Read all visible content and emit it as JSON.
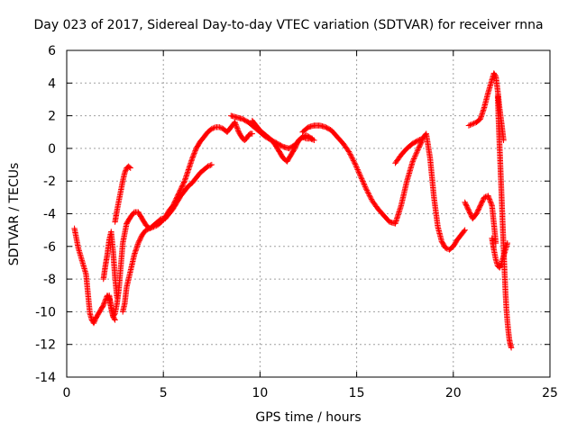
{
  "chart_data": {
    "type": "scatter",
    "title": "Day 023 of 2017, Sidereal Day-to-day VTEC variation (SDTVAR) for receiver rnna",
    "xlabel": "GPS time / hours",
    "ylabel": "SDTVAR / TECUs",
    "xlim": [
      0,
      25
    ],
    "ylim": [
      -14,
      6
    ],
    "x_ticks": [
      0,
      5,
      10,
      15,
      20,
      25
    ],
    "y_ticks": [
      -14,
      -12,
      -10,
      -8,
      -6,
      -4,
      -2,
      0,
      2,
      4,
      6
    ],
    "grid": true,
    "marker": "+",
    "color": "#ff0000",
    "series": [
      {
        "x": [
          0.4,
          0.6,
          1.0,
          1.05,
          1.1,
          1.15,
          1.2,
          1.3,
          1.4,
          1.5
        ],
        "y": [
          -4.9,
          -6.1,
          -7.7,
          -8.3,
          -8.9,
          -9.5,
          -10.1,
          -10.5,
          -10.7,
          -10.4
        ]
      },
      {
        "x": [
          1.5,
          1.7,
          1.9,
          2.0,
          2.1,
          2.2,
          2.3,
          2.4,
          2.5,
          2.6,
          2.7,
          2.8,
          2.9,
          3.0,
          3.1
        ],
        "y": [
          -10.4,
          -10.0,
          -9.6,
          -9.3,
          -9.0,
          -9.2,
          -9.8,
          -10.3,
          -10.1,
          -9.5,
          -8.6,
          -7.2,
          -5.8,
          -5.2,
          -4.6
        ]
      },
      {
        "x": [
          1.9,
          2.0,
          2.1,
          2.2,
          2.3,
          2.4,
          2.5,
          2.6
        ],
        "y": [
          -8.0,
          -7.2,
          -6.5,
          -5.6,
          -5.1,
          -6.3,
          -7.9,
          -9.1
        ]
      },
      {
        "x": [
          2.2,
          2.3,
          2.4,
          2.5
        ],
        "y": [
          -9.0,
          -9.7,
          -10.3,
          -10.5
        ]
      },
      {
        "x": [
          2.5,
          2.6,
          2.7,
          2.8,
          2.9,
          3.0,
          3.1,
          3.2,
          3.3
        ],
        "y": [
          -4.5,
          -3.8,
          -3.2,
          -2.6,
          -2.0,
          -1.5,
          -1.2,
          -1.1,
          -1.2
        ]
      },
      {
        "x": [
          3.1,
          3.3,
          3.5,
          3.7,
          3.9,
          4.1,
          4.3,
          4.5,
          4.7,
          4.9,
          5.1,
          5.3,
          5.5,
          5.7,
          5.9,
          6.1,
          6.3,
          6.5,
          6.7,
          6.9,
          7.1,
          7.3,
          7.5
        ],
        "y": [
          -4.6,
          -4.2,
          -3.9,
          -3.9,
          -4.3,
          -4.7,
          -4.9,
          -4.7,
          -4.5,
          -4.3,
          -4.3,
          -4.0,
          -3.7,
          -3.3,
          -2.9,
          -2.6,
          -2.3,
          -2.1,
          -1.8,
          -1.5,
          -1.3,
          -1.1,
          -1.0
        ]
      },
      {
        "x": [
          2.9,
          3.0,
          3.1,
          3.3,
          3.5,
          3.7,
          3.9,
          4.1,
          4.3,
          4.5,
          4.7,
          4.9,
          5.1,
          5.3,
          5.5,
          5.7,
          5.9,
          6.1,
          6.3,
          6.5,
          6.7,
          6.9,
          7.1,
          7.3,
          7.5,
          7.7,
          7.9,
          8.1,
          8.3,
          8.5,
          8.7
        ],
        "y": [
          -10.0,
          -9.5,
          -8.5,
          -7.5,
          -6.5,
          -5.8,
          -5.3,
          -5.0,
          -4.9,
          -4.8,
          -4.7,
          -4.5,
          -4.2,
          -3.8,
          -3.5,
          -3.0,
          -2.5,
          -2.0,
          -1.3,
          -0.6,
          0.0,
          0.4,
          0.7,
          1.0,
          1.2,
          1.3,
          1.3,
          1.2,
          1.0,
          1.3,
          1.6
        ]
      },
      {
        "x": [
          8.7,
          8.8,
          8.9,
          9.0,
          9.1,
          9.2,
          9.3,
          9.4,
          9.5,
          9.6
        ],
        "y": [
          1.6,
          1.3,
          1.0,
          0.8,
          0.6,
          0.5,
          0.6,
          0.8,
          0.9,
          0.9
        ]
      },
      {
        "x": [
          8.5,
          8.8,
          9.1,
          9.4,
          9.7,
          10.0,
          10.3,
          10.6,
          10.9,
          11.2,
          11.5,
          11.8,
          12.1,
          12.4,
          12.7
        ],
        "y": [
          2.0,
          1.9,
          1.8,
          1.6,
          1.3,
          1.0,
          0.7,
          0.5,
          0.3,
          0.1,
          0.0,
          0.2,
          0.6,
          0.8,
          0.6
        ]
      },
      {
        "x": [
          9.6,
          9.8,
          10.0,
          10.2,
          10.4,
          10.6,
          10.8,
          11.0,
          11.2,
          11.4,
          11.6,
          11.8,
          12.0,
          12.2,
          12.4,
          12.6,
          12.8
        ],
        "y": [
          1.7,
          1.4,
          1.1,
          0.9,
          0.7,
          0.5,
          0.2,
          -0.2,
          -0.6,
          -0.8,
          -0.4,
          0.0,
          0.5,
          0.7,
          0.6,
          0.6,
          0.5
        ]
      },
      {
        "x": [
          12.2,
          12.5,
          12.8,
          13.1,
          13.4,
          13.7,
          14.0,
          14.3,
          14.6,
          14.9,
          15.2,
          15.5,
          15.8,
          16.1,
          16.4,
          16.7,
          17.0,
          17.3,
          17.6,
          17.9,
          18.2,
          18.4
        ],
        "y": [
          1.0,
          1.3,
          1.4,
          1.4,
          1.3,
          1.1,
          0.7,
          0.3,
          -0.2,
          -0.9,
          -1.7,
          -2.5,
          -3.2,
          -3.7,
          -4.1,
          -4.5,
          -4.6,
          -3.5,
          -2.0,
          -0.8,
          0.0,
          0.5
        ]
      },
      {
        "x": [
          17.0,
          17.3,
          17.6,
          17.9,
          18.2,
          18.4,
          18.6,
          18.8,
          19.0,
          19.2,
          19.4,
          19.6,
          19.8,
          20.0,
          20.2,
          20.4,
          20.6
        ],
        "y": [
          -0.9,
          -0.4,
          0.0,
          0.3,
          0.5,
          0.6,
          0.9,
          -0.6,
          -3.0,
          -4.8,
          -5.7,
          -6.1,
          -6.2,
          -6.0,
          -5.6,
          -5.3,
          -5.0
        ]
      },
      {
        "x": [
          20.6,
          20.8,
          21.0,
          21.2,
          21.4,
          21.6,
          21.8,
          22.0,
          22.1,
          22.2
        ],
        "y": [
          -3.3,
          -3.8,
          -4.3,
          -4.0,
          -3.5,
          -3.0,
          -2.9,
          -3.5,
          -4.6,
          -5.8
        ]
      },
      {
        "x": [
          20.8,
          21.0,
          21.2,
          21.4,
          21.6,
          21.8,
          22.0,
          22.1,
          22.2,
          22.3,
          22.4,
          22.5,
          22.6
        ],
        "y": [
          1.4,
          1.5,
          1.6,
          1.8,
          2.5,
          3.4,
          4.2,
          4.6,
          4.4,
          3.5,
          2.4,
          1.5,
          0.5
        ]
      },
      {
        "x": [
          22.3,
          22.35,
          22.4,
          22.45,
          22.5,
          22.55,
          22.6,
          22.65,
          22.7,
          22.75,
          22.8,
          22.85,
          22.9,
          22.95,
          23.0
        ],
        "y": [
          3.2,
          1.5,
          0.0,
          -1.5,
          -3.0,
          -4.5,
          -6.0,
          -7.5,
          -8.8,
          -9.9,
          -10.6,
          -11.2,
          -11.7,
          -12.0,
          -12.2
        ]
      },
      {
        "x": [
          22.0,
          22.1,
          22.2,
          22.3,
          22.4,
          22.5,
          22.6,
          22.7,
          22.8
        ],
        "y": [
          -5.5,
          -6.2,
          -6.8,
          -7.2,
          -7.3,
          -7.0,
          -6.6,
          -6.2,
          -5.8
        ]
      }
    ]
  }
}
